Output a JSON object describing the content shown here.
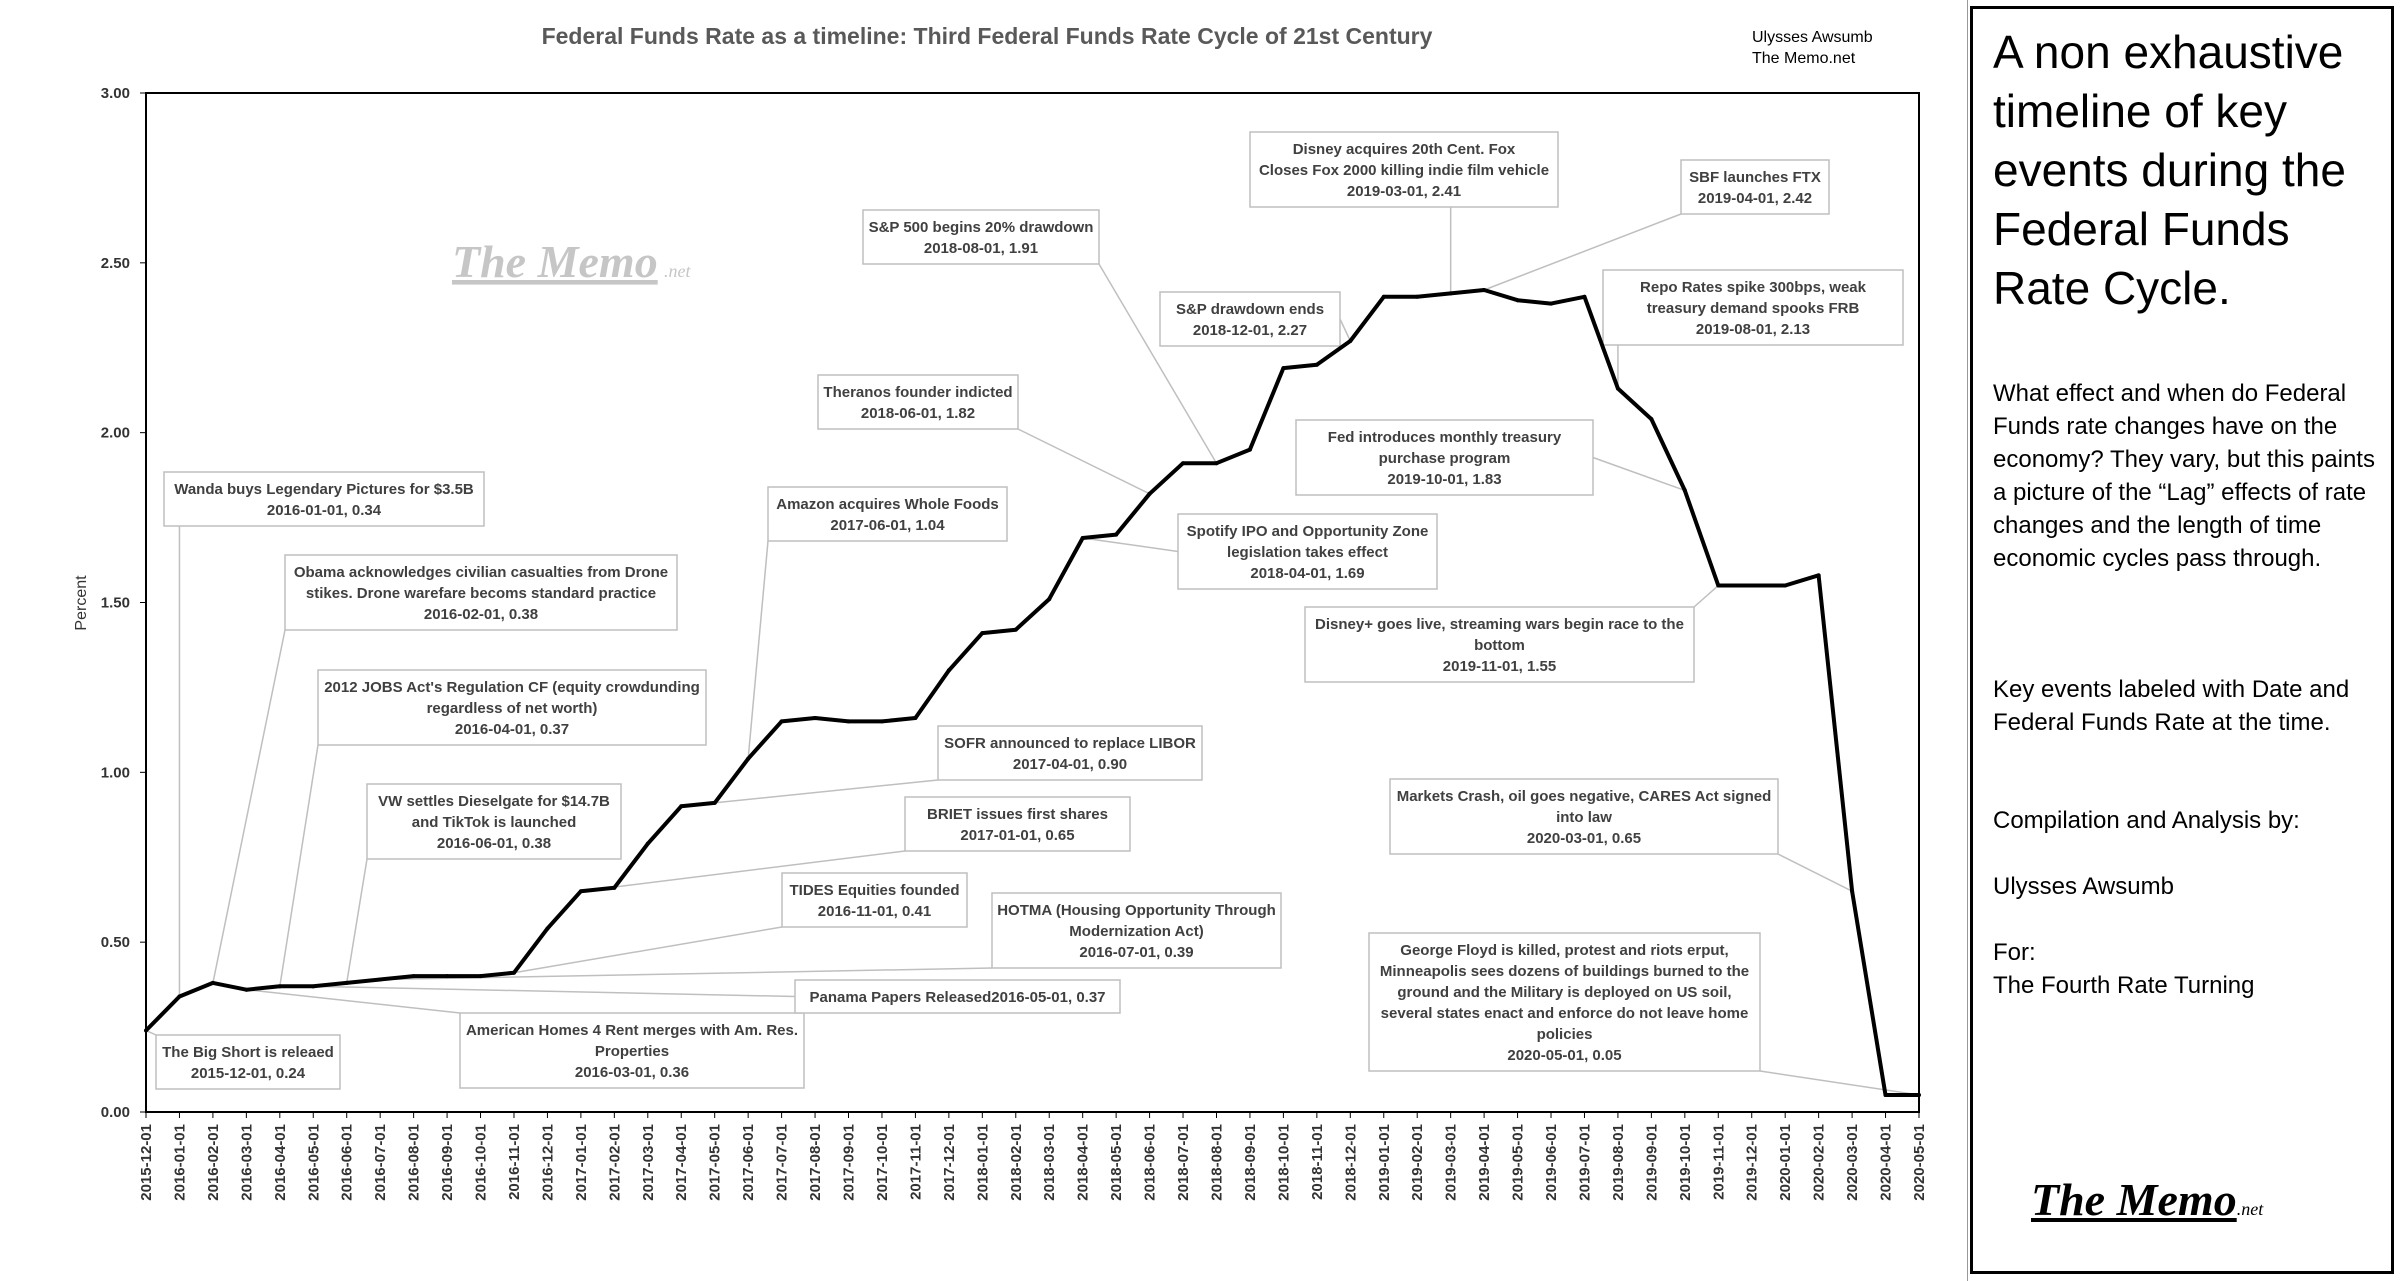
{
  "chart_data": {
    "type": "line",
    "title": "Federal Funds Rate as a timeline: Third Federal Funds Rate Cycle of 21st Century",
    "credit": [
      "Ulysses Awsumb",
      "The Memo.net"
    ],
    "ylabel": "Percent",
    "ylim": [
      0,
      3
    ],
    "yticks": [
      "0.00",
      "0.50",
      "1.00",
      "1.50",
      "2.00",
      "2.50",
      "3.00"
    ],
    "grid": false,
    "x": [
      "2015-12-01",
      "2016-01-01",
      "2016-02-01",
      "2016-03-01",
      "2016-04-01",
      "2016-05-01",
      "2016-06-01",
      "2016-07-01",
      "2016-08-01",
      "2016-09-01",
      "2016-10-01",
      "2016-11-01",
      "2016-12-01",
      "2017-01-01",
      "2017-02-01",
      "2017-03-01",
      "2017-04-01",
      "2017-05-01",
      "2017-06-01",
      "2017-07-01",
      "2017-08-01",
      "2017-09-01",
      "2017-10-01",
      "2017-11-01",
      "2017-12-01",
      "2018-01-01",
      "2018-02-01",
      "2018-03-01",
      "2018-04-01",
      "2018-05-01",
      "2018-06-01",
      "2018-07-01",
      "2018-08-01",
      "2018-09-01",
      "2018-10-01",
      "2018-11-01",
      "2018-12-01",
      "2019-01-01",
      "2019-02-01",
      "2019-03-01",
      "2019-04-01",
      "2019-05-01",
      "2019-06-01",
      "2019-07-01",
      "2019-08-01",
      "2019-09-01",
      "2019-10-01",
      "2019-11-01",
      "2019-12-01",
      "2020-01-01",
      "2020-02-01",
      "2020-03-01",
      "2020-04-01",
      "2020-05-01"
    ],
    "series": [
      {
        "values": [
          0.24,
          0.34,
          0.38,
          0.36,
          0.37,
          0.37,
          0.38,
          0.39,
          0.4,
          0.4,
          0.4,
          0.41,
          0.54,
          0.65,
          0.66,
          0.79,
          0.9,
          0.91,
          1.04,
          1.15,
          1.16,
          1.15,
          1.15,
          1.16,
          1.3,
          1.41,
          1.42,
          1.51,
          1.69,
          1.7,
          1.82,
          1.91,
          1.91,
          1.95,
          2.19,
          2.2,
          2.27,
          2.4,
          2.4,
          2.41,
          2.42,
          2.39,
          2.38,
          2.4,
          2.13,
          2.04,
          1.83,
          1.55,
          1.55,
          1.55,
          1.58,
          0.65,
          0.05,
          0.05
        ]
      }
    ],
    "annotations": [
      {
        "date": "2015-12-01",
        "value": 0.24,
        "lines": [
          "The Big Short is releaed",
          "2015-12-01, 0.24"
        ]
      },
      {
        "date": "2016-01-01",
        "value": 0.34,
        "lines": [
          "Wanda buys Legendary Pictures for $3.5B",
          "2016-01-01, 0.34"
        ]
      },
      {
        "date": "2016-02-01",
        "value": 0.38,
        "lines": [
          "Obama acknowledges civilian casualties from Drone",
          "stikes. Drone warefare becoms standard practice",
          "2016-02-01, 0.38"
        ]
      },
      {
        "date": "2016-03-01",
        "value": 0.36,
        "lines": [
          "American Homes 4 Rent merges with Am. Res.",
          "Properties",
          "2016-03-01, 0.36"
        ]
      },
      {
        "date": "2016-04-01",
        "value": 0.37,
        "lines": [
          "2012 JOBS Act's Regulation CF (equity crowdunding",
          "regardless of net worth)",
          "2016-04-01, 0.37"
        ]
      },
      {
        "date": "2016-05-01",
        "value": 0.37,
        "lines": [
          "Panama Papers Released2016-05-01, 0.37"
        ]
      },
      {
        "date": "2016-06-01",
        "value": 0.38,
        "lines": [
          "VW settles Dieselgate for $14.7B",
          "and TikTok is launched",
          "2016-06-01, 0.38"
        ]
      },
      {
        "date": "2016-07-01",
        "value": 0.39,
        "lines": [
          "HOTMA (Housing Opportunity Through",
          "Modernization Act)",
          "2016-07-01, 0.39"
        ]
      },
      {
        "date": "2016-11-01",
        "value": 0.41,
        "lines": [
          "TIDES Equities founded",
          "2016-11-01, 0.41"
        ]
      },
      {
        "date": "2017-01-01",
        "value": 0.65,
        "lines": [
          "BRIET issues first shares",
          "2017-01-01, 0.65"
        ]
      },
      {
        "date": "2017-04-01",
        "value": 0.9,
        "lines": [
          "SOFR announced to replace LIBOR",
          "2017-04-01, 0.90"
        ]
      },
      {
        "date": "2017-06-01",
        "value": 1.04,
        "lines": [
          "Amazon acquires Whole Foods",
          "2017-06-01, 1.04"
        ]
      },
      {
        "date": "2018-04-01",
        "value": 1.69,
        "lines": [
          "Spotify IPO and Opportunity Zone",
          "legislation takes effect",
          "2018-04-01, 1.69"
        ]
      },
      {
        "date": "2018-06-01",
        "value": 1.82,
        "lines": [
          "Theranos founder indicted",
          "2018-06-01, 1.82"
        ]
      },
      {
        "date": "2018-08-01",
        "value": 1.91,
        "lines": [
          "S&P 500 begins 20% drawdown",
          "2018-08-01, 1.91"
        ]
      },
      {
        "date": "2018-12-01",
        "value": 2.27,
        "lines": [
          "S&P drawdown ends",
          "2018-12-01, 2.27"
        ]
      },
      {
        "date": "2019-03-01",
        "value": 2.41,
        "lines": [
          "Disney acquires 20th Cent. Fox",
          "Closes Fox 2000 killing indie film vehicle",
          "2019-03-01, 2.41"
        ]
      },
      {
        "date": "2019-04-01",
        "value": 2.42,
        "lines": [
          "SBF launches FTX",
          "2019-04-01, 2.42"
        ]
      },
      {
        "date": "2019-08-01",
        "value": 2.13,
        "lines": [
          "Repo Rates spike 300bps, weak",
          "treasury demand spooks FRB",
          "2019-08-01, 2.13"
        ]
      },
      {
        "date": "2019-10-01",
        "value": 1.83,
        "lines": [
          "Fed introduces monthly treasury",
          "purchase program",
          "2019-10-01, 1.83"
        ]
      },
      {
        "date": "2019-11-01",
        "value": 1.55,
        "lines": [
          "Disney+ goes live, streaming wars begin race to the",
          "bottom",
          "2019-11-01, 1.55"
        ]
      },
      {
        "date": "2020-03-01",
        "value": 0.65,
        "lines": [
          "Markets Crash, oil goes negative, CARES Act signed",
          "into law",
          "2020-03-01, 0.65"
        ]
      },
      {
        "date": "2020-05-01",
        "value": 0.05,
        "lines": [
          "George Floyd is killed, protest and riots erput,",
          "Minneapolis sees dozens of buildings burned to the",
          "ground and the Military is deployed on US soil,",
          "several states enact and enforce do not leave home",
          "policies",
          "2020-05-01, 0.05"
        ]
      }
    ],
    "watermark": {
      "logo": "The Memo",
      "suffix": ".net"
    }
  },
  "side_panel": {
    "heading": "A non exhaustive timeline of key events during the Federal Funds Rate Cycle.",
    "paragraph": "What effect and when do Federal Funds rate changes have on the economy? They vary, but this paints a picture of the “Lag” effects of rate changes and the length of time economic cycles pass through.",
    "key_note": "Key events labeled with Date and Federal Funds Rate at the time.",
    "compilation_label": "Compilation and Analysis by:",
    "author": "Ulysses Awsumb",
    "for_label": "For:",
    "for_name": "The Fourth Rate Turning",
    "logo": "The Memo",
    "logo_suffix": ".net"
  }
}
